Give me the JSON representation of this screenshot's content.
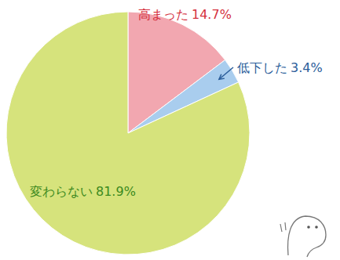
{
  "chart_data": {
    "type": "pie",
    "categories": [
      "高まった",
      "低下した",
      "変わらない"
    ],
    "values": [
      14.7,
      3.4,
      81.9
    ],
    "value_labels": [
      "14.7%",
      "3.4%",
      "81.9%"
    ],
    "colors": [
      "#f2a7b0",
      "#a9cdee",
      "#d6e37c"
    ],
    "data_labels": true
  }
}
